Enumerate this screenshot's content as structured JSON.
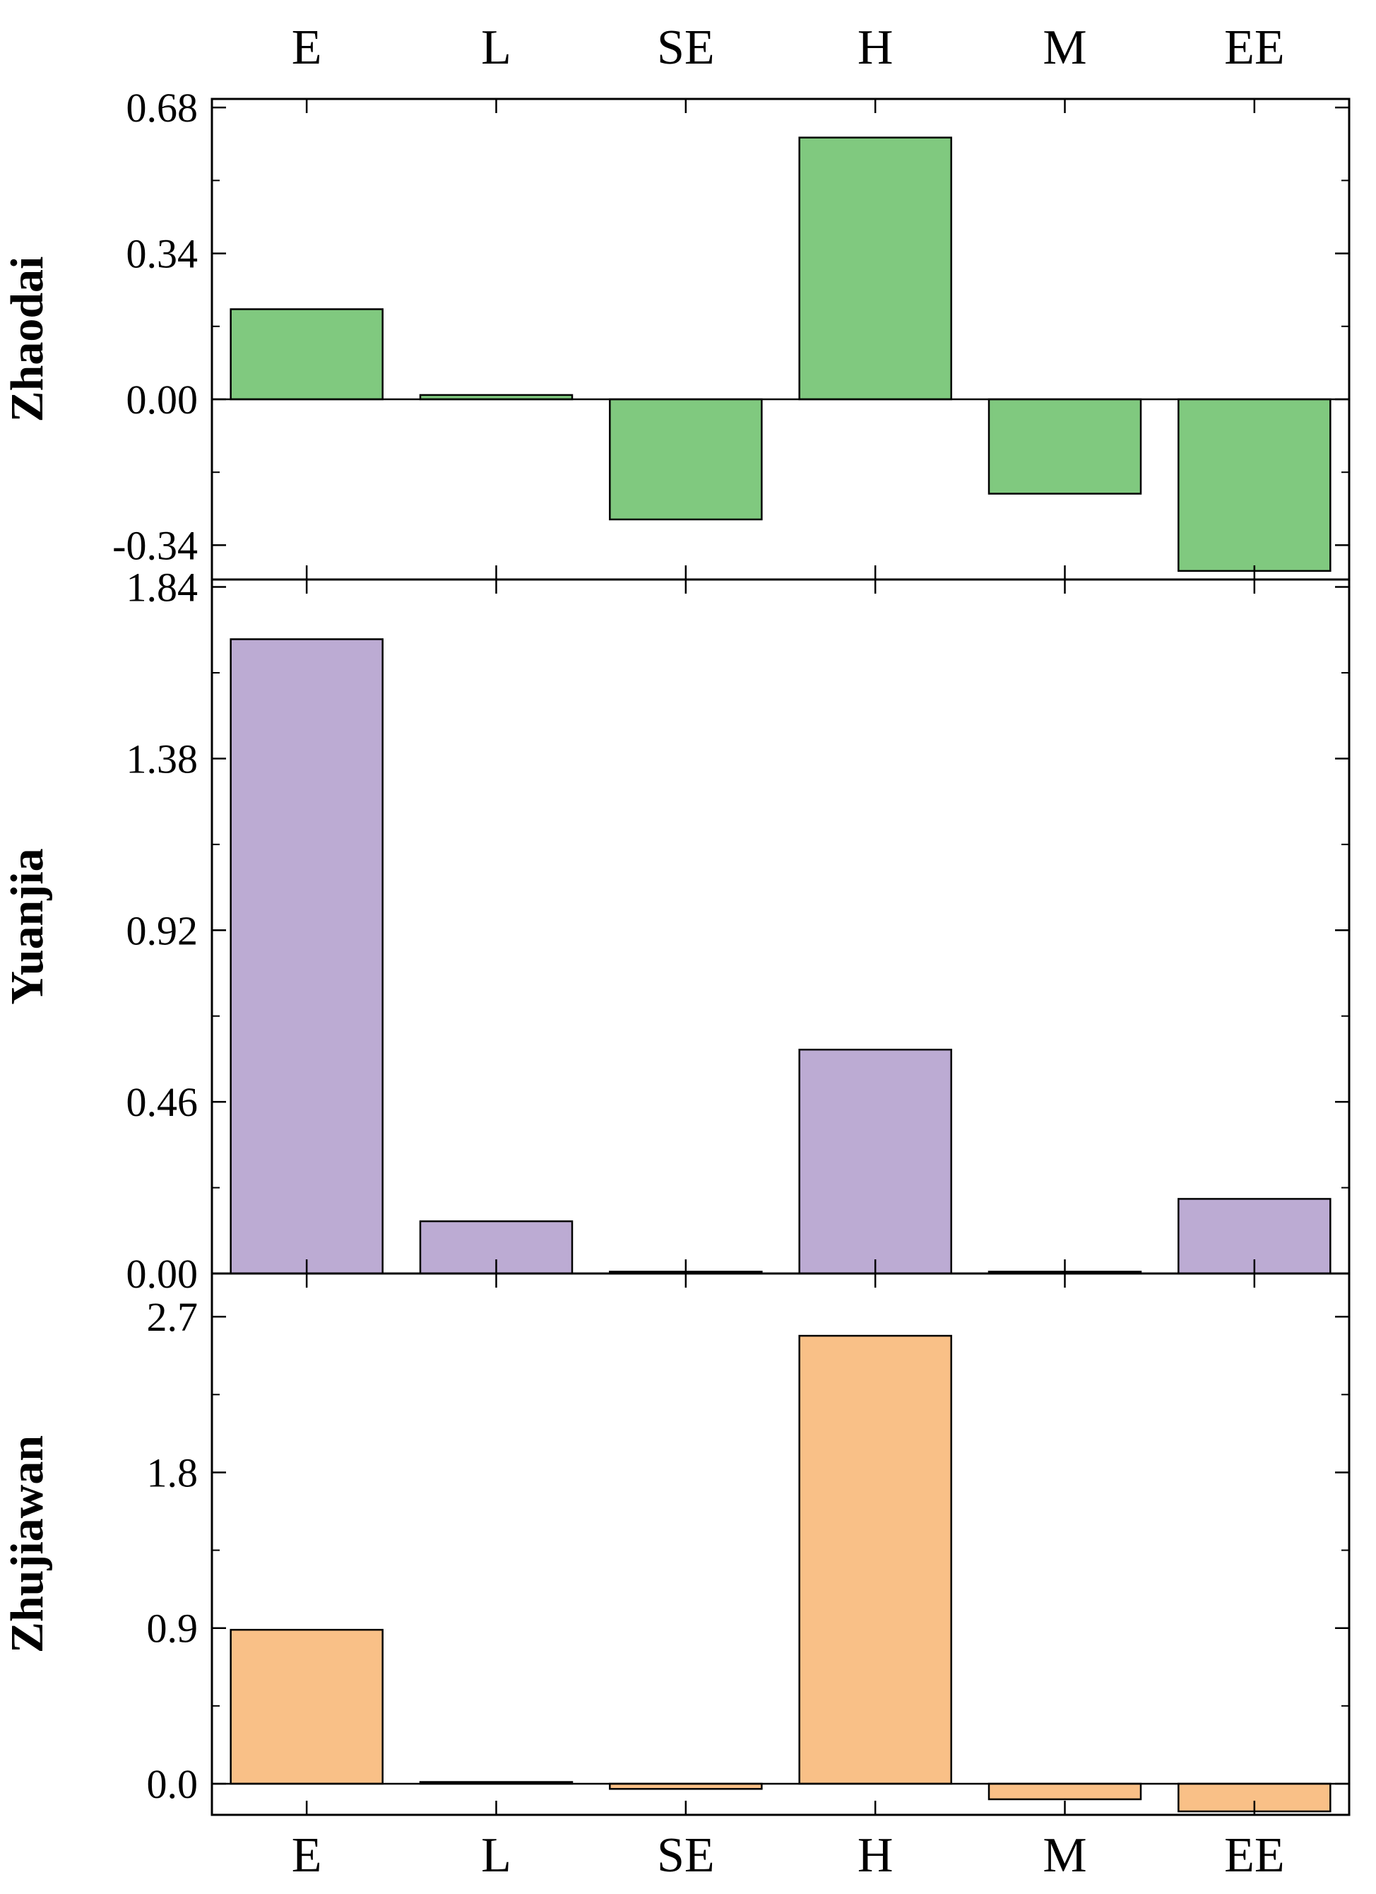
{
  "chart_data": {
    "type": "bar",
    "categories": [
      "E",
      "L",
      "SE",
      "H",
      "M",
      "EE"
    ],
    "panels": [
      {
        "name": "Zhaodai",
        "color": "#80c97f",
        "ylim": [
          -0.42,
          0.7
        ],
        "yticks": [
          -0.34,
          0.0,
          0.34,
          0.68
        ],
        "ytick_labels": [
          "-0.34",
          "0.00",
          "0.34",
          "0.68"
        ],
        "values": [
          0.21,
          0.01,
          -0.28,
          0.61,
          -0.22,
          -0.4
        ]
      },
      {
        "name": "Yuanjia",
        "color": "#bcabd3",
        "ylim": [
          0.0,
          1.86
        ],
        "yticks": [
          0.0,
          0.46,
          0.92,
          1.38,
          1.84
        ],
        "ytick_labels": [
          "0.00",
          "0.46",
          "0.92",
          "1.38",
          "1.84"
        ],
        "values": [
          1.7,
          0.14,
          0.005,
          0.6,
          0.005,
          0.2
        ]
      },
      {
        "name": "Zhujiawan",
        "color": "#f9c087",
        "ylim": [
          -0.18,
          2.95
        ],
        "yticks": [
          0.0,
          0.9,
          1.8,
          2.7
        ],
        "ytick_labels": [
          "0.0",
          "0.9",
          "1.8",
          "2.7"
        ],
        "values": [
          0.89,
          0.01,
          -0.03,
          2.59,
          -0.09,
          -0.16
        ]
      }
    ]
  }
}
